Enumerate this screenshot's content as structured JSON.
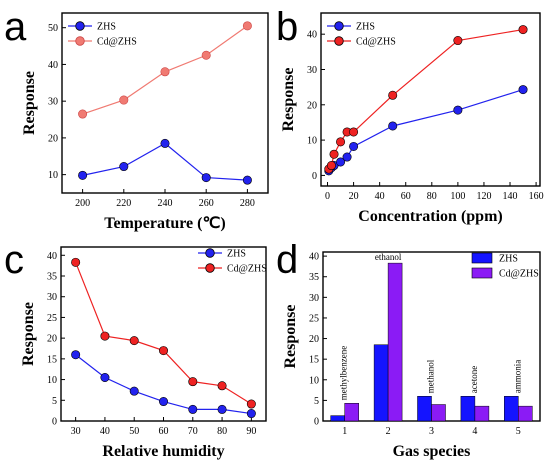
{
  "colors": {
    "zhs": "#2222ee",
    "cd": "#ee2222",
    "cd_light": "#f07a72",
    "bar_zhs": "#1414ff",
    "bar_cd": "#8b1bf5"
  },
  "chart_data": [
    {
      "panel": "a",
      "type": "line",
      "xlabel": "Temperature (℃)",
      "ylabel": "Response",
      "x": [
        200,
        220,
        240,
        260,
        280
      ],
      "xticks": [
        "200",
        "220",
        "240",
        "260",
        "280"
      ],
      "yticks": [
        "10",
        "20",
        "30",
        "40",
        "50"
      ],
      "xlim": [
        190,
        290
      ],
      "ylim": [
        5,
        54
      ],
      "legend_position": "top-left",
      "series": [
        {
          "name": "ZHS",
          "values": [
            9.8,
            12.2,
            18.5,
            9.2,
            8.5
          ]
        },
        {
          "name": "Cd@ZHS",
          "values": [
            26.5,
            30.3,
            38.0,
            42.5,
            50.5
          ]
        }
      ]
    },
    {
      "panel": "b",
      "type": "line",
      "xlabel": "Concentration (ppm)",
      "ylabel": "Response",
      "xticks": [
        "0",
        "20",
        "40",
        "60",
        "80",
        "100",
        "120",
        "140",
        "160"
      ],
      "yticks": [
        "0",
        "10",
        "20",
        "30",
        "40"
      ],
      "xlim": [
        -5,
        163
      ],
      "ylim": [
        -3,
        46
      ],
      "legend_position": "top-left",
      "series": [
        {
          "name": "ZHS",
          "x": [
            1,
            3,
            5,
            10,
            15,
            20,
            50,
            100,
            150
          ],
          "values": [
            1.3,
            2.2,
            2.8,
            3.8,
            5.2,
            8.2,
            14.0,
            18.5,
            24.3
          ]
        },
        {
          "name": "Cd@ZHS",
          "x": [
            1,
            3,
            5,
            10,
            15,
            20,
            50,
            100,
            150
          ],
          "values": [
            1.8,
            2.8,
            6.0,
            9.5,
            12.3,
            12.3,
            22.7,
            38.2,
            41.3
          ]
        }
      ]
    },
    {
      "panel": "c",
      "type": "line",
      "xlabel": "Relative humidity",
      "ylabel": "Response",
      "x": [
        30,
        40,
        50,
        60,
        70,
        80,
        90
      ],
      "xticks": [
        "30",
        "40",
        "50",
        "60",
        "70",
        "80",
        "90"
      ],
      "yticks": [
        "0",
        "5",
        "10",
        "15",
        "20",
        "25",
        "30",
        "35",
        "40"
      ],
      "xlim": [
        25,
        95
      ],
      "ylim": [
        0,
        42
      ],
      "legend_position": "top-right",
      "series": [
        {
          "name": "ZHS",
          "values": [
            16.0,
            10.5,
            7.2,
            4.7,
            2.8,
            2.8,
            1.8
          ]
        },
        {
          "name": "Cd@ZHS",
          "values": [
            38.3,
            20.5,
            19.4,
            17.0,
            9.5,
            8.5,
            4.1
          ]
        }
      ]
    },
    {
      "panel": "d",
      "type": "bar",
      "xlabel": "Gas species",
      "ylabel": "Response",
      "categories": [
        "1",
        "2",
        "3",
        "4",
        "5"
      ],
      "gas_labels": [
        "methylbenzene",
        "ethanol",
        "methanol",
        "acetone",
        "ammonia"
      ],
      "yticks": [
        "0",
        "5",
        "10",
        "15",
        "20",
        "25",
        "30",
        "35",
        "40"
      ],
      "xlim": [
        0.5,
        5.5
      ],
      "ylim": [
        0,
        41
      ],
      "legend_position": "top-right",
      "series": [
        {
          "name": "ZHS",
          "values": [
            1.3,
            18.5,
            6.0,
            6.0,
            6.0
          ]
        },
        {
          "name": "Cd@ZHS",
          "values": [
            4.3,
            38.3,
            4.0,
            3.6,
            3.6
          ]
        }
      ]
    }
  ]
}
